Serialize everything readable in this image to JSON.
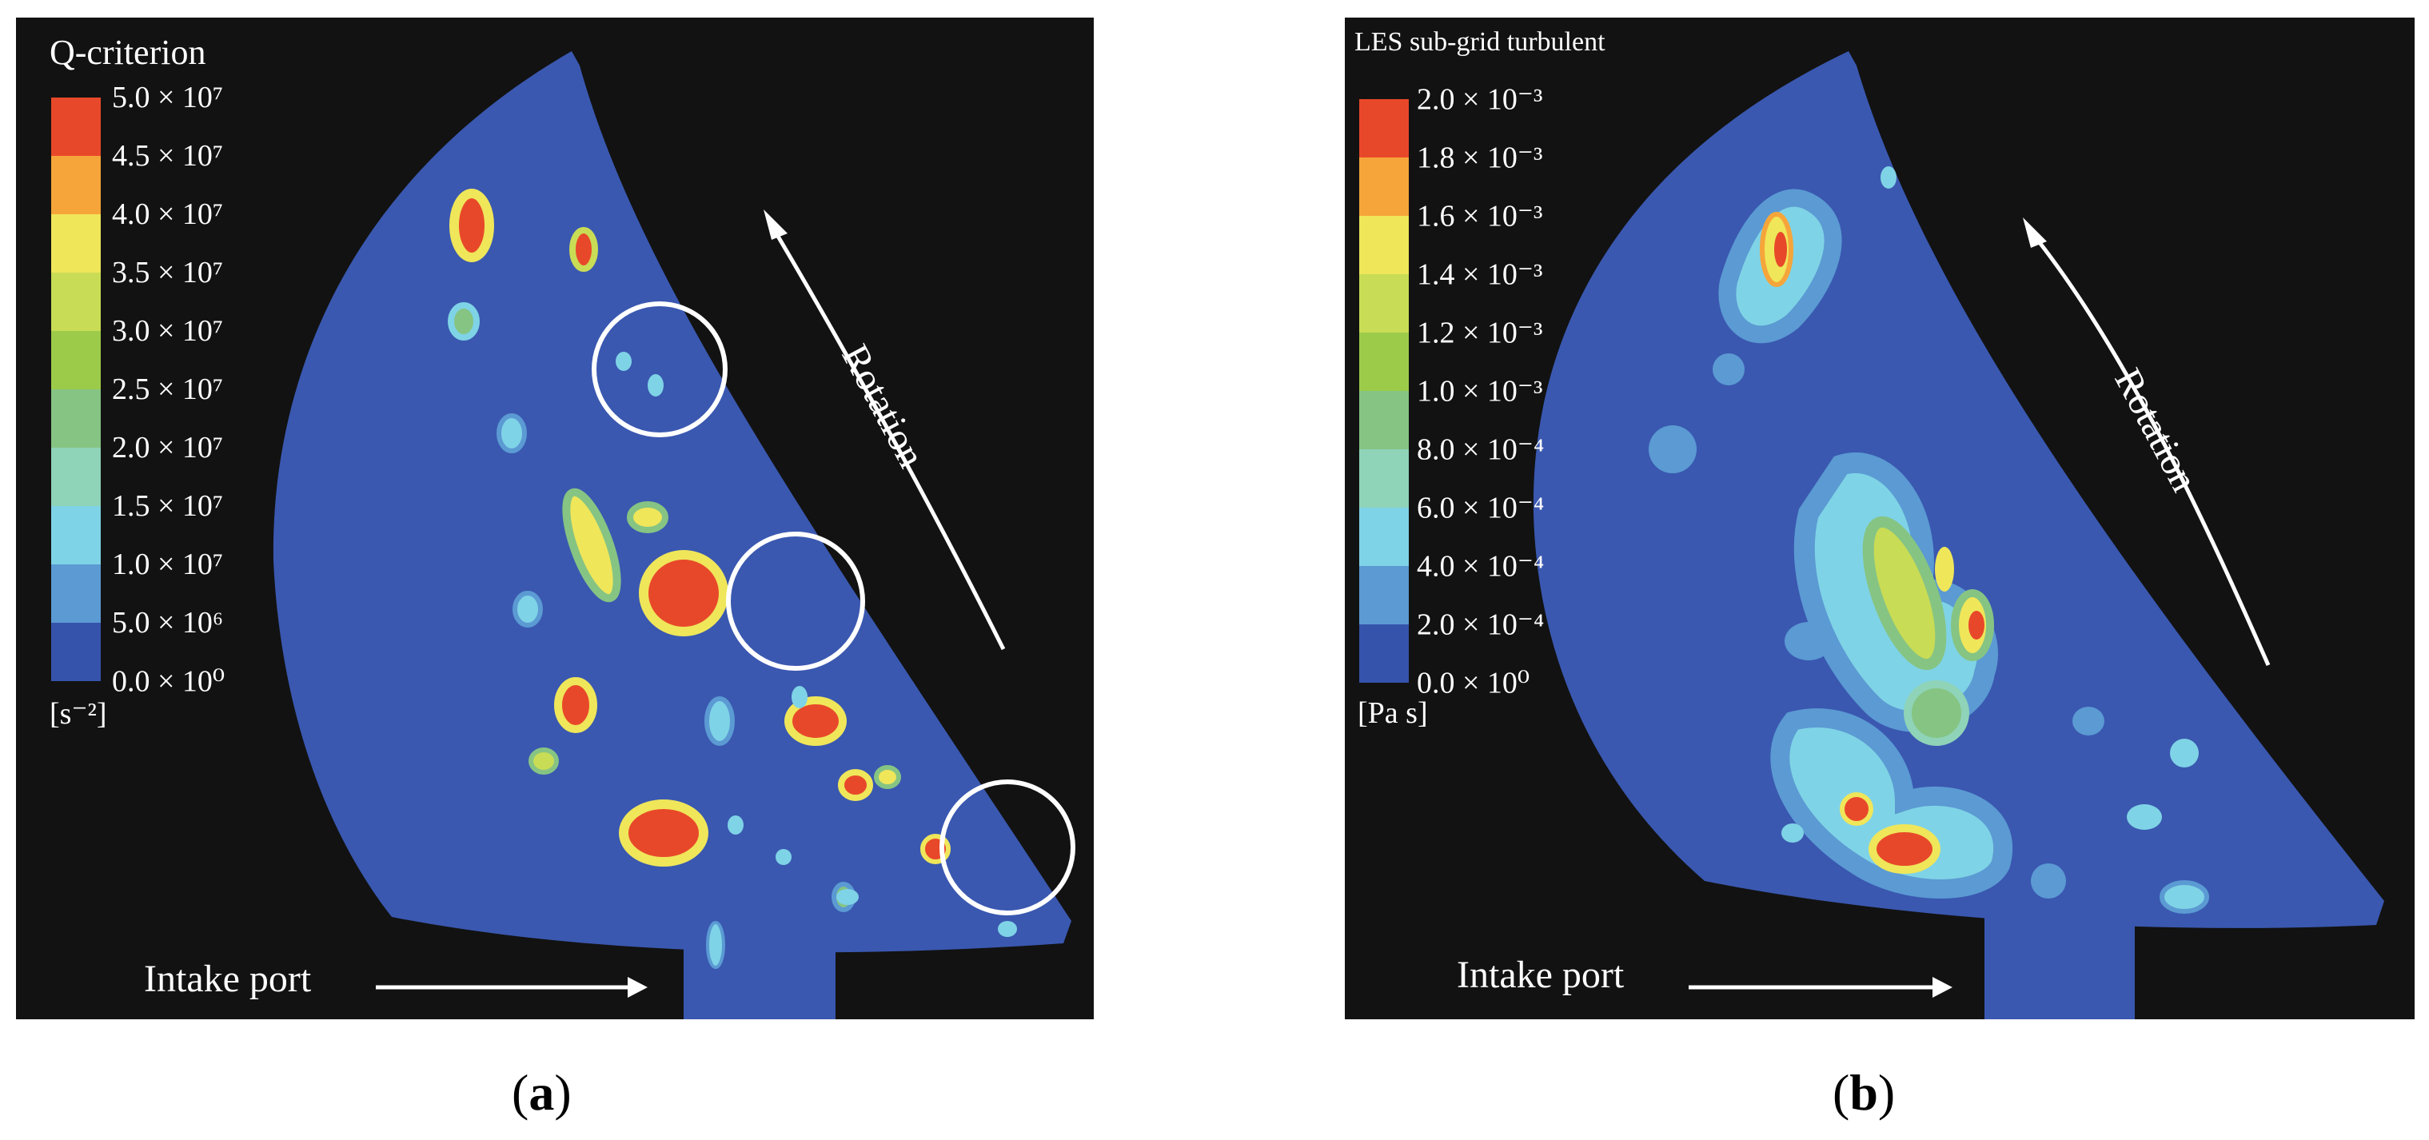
{
  "panels": [
    {
      "id": "a",
      "caption": "a",
      "legend_title": "Q-criterion",
      "unit": "[s⁻²]",
      "ticks": [
        "5.0 × 10⁷",
        "4.5 × 10⁷",
        "4.0 × 10⁷",
        "3.5 × 10⁷",
        "3.0 × 10⁷",
        "2.5 × 10⁷",
        "2.0 × 10⁷",
        "1.5 × 10⁷",
        "1.0 × 10⁷",
        "5.0 × 10⁶",
        "0.0 × 10⁰"
      ],
      "intake_label": "Intake port",
      "rotation_label": "Rotation",
      "highlight_circles": 3
    },
    {
      "id": "b",
      "caption": "b",
      "legend_title": "LES sub-grid turbulent",
      "unit": "[Pa s]",
      "ticks": [
        "2.0 × 10⁻³",
        "1.8 × 10⁻³",
        "1.6 × 10⁻³",
        "1.4 × 10⁻³",
        "1.2 × 10⁻³",
        "1.0 × 10⁻³",
        "8.0 × 10⁻⁴",
        "6.0 × 10⁻⁴",
        "4.0 × 10⁻⁴",
        "2.0 × 10⁻⁴",
        "0.0 × 10⁰"
      ],
      "intake_label": "Intake port",
      "rotation_label": "Rotation"
    }
  ],
  "colormap": [
    "#e8482a",
    "#f6a53a",
    "#efe65a",
    "#c9dc55",
    "#9ccb4a",
    "#86c483",
    "#8fd3b8",
    "#7fd3e6",
    "#5b9ad3",
    "#3653ac"
  ]
}
